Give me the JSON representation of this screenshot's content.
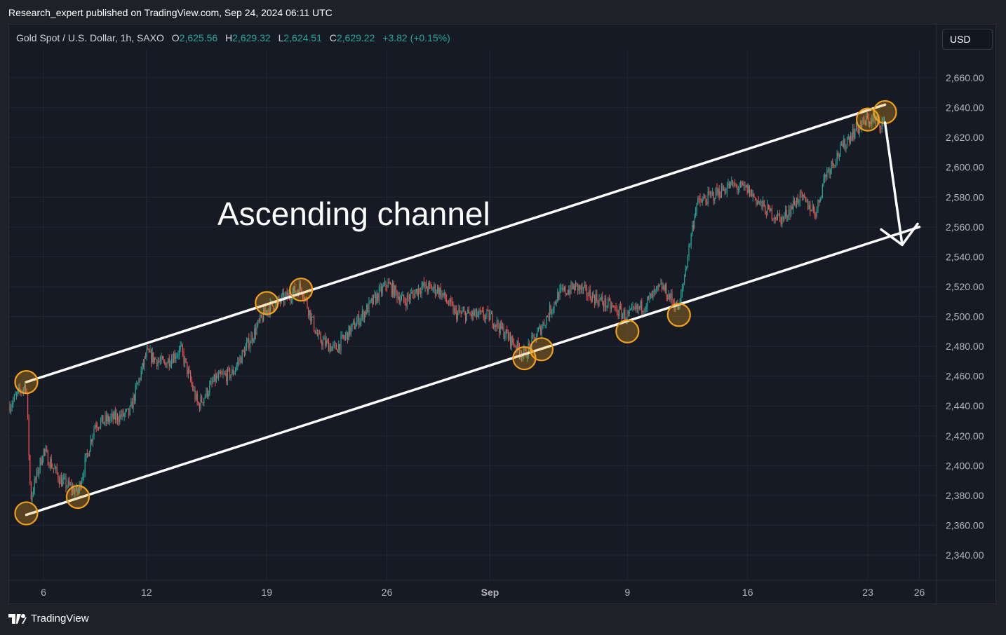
{
  "header": {
    "published": "Research_expert published on TradingView.com, Sep 24, 2024 06:11 UTC"
  },
  "legend": {
    "symbol": "Gold Spot / U.S. Dollar, 1h, SAXO",
    "o_label": "O",
    "o_value": "2,625.56",
    "h_label": "H",
    "h_value": "2,629.32",
    "l_label": "L",
    "l_value": "2,624.51",
    "c_label": "C",
    "c_value": "2,629.22",
    "change": "+3.82 (+0.15%)"
  },
  "currency": "USD",
  "footer": {
    "brand": "TradingView",
    "logo_icon": "tradingview-logo-icon"
  },
  "colors": {
    "up": "#26a69a",
    "down": "#ef5350",
    "marker": "#f0a01e",
    "channel": "#ffffff",
    "background": "#161a25"
  },
  "chart_data": {
    "type": "candlestick",
    "title": "",
    "annotation": "Ascending channel",
    "timeframe": "1h",
    "xlabel": "",
    "ylabel": "",
    "ylim": [
      2330,
      2680
    ],
    "x_range": [
      "2024-08-04",
      "2024-09-27"
    ],
    "grid": true,
    "y_ticks": [
      "2,340.00",
      "2,360.00",
      "2,380.00",
      "2,400.00",
      "2,420.00",
      "2,440.00",
      "2,460.00",
      "2,480.00",
      "2,500.00",
      "2,520.00",
      "2,540.00",
      "2,560.00",
      "2,580.00",
      "2,600.00",
      "2,620.00",
      "2,640.00",
      "2,660.00"
    ],
    "y_tick_values": [
      2340,
      2360,
      2380,
      2400,
      2420,
      2440,
      2460,
      2480,
      2500,
      2520,
      2540,
      2560,
      2580,
      2600,
      2620,
      2640,
      2660
    ],
    "x_ticks": [
      {
        "label": "6",
        "date": "2024-08-06"
      },
      {
        "label": "12",
        "date": "2024-08-12"
      },
      {
        "label": "19",
        "date": "2024-08-19"
      },
      {
        "label": "26",
        "date": "2024-08-26"
      },
      {
        "label": "Sep",
        "date": "2024-09-01"
      },
      {
        "label": "9",
        "date": "2024-09-09"
      },
      {
        "label": "16",
        "date": "2024-09-16"
      },
      {
        "label": "23",
        "date": "2024-09-23"
      },
      {
        "label": "26",
        "date": "2024-09-26"
      }
    ],
    "price_path": [
      {
        "date": "2024-08-04",
        "price": 2440
      },
      {
        "date": "2024-08-05",
        "price": 2455
      },
      {
        "date": "2024-08-05T06",
        "price": 2378
      },
      {
        "date": "2024-08-06",
        "price": 2410
      },
      {
        "date": "2024-08-07",
        "price": 2390
      },
      {
        "date": "2024-08-08",
        "price": 2382
      },
      {
        "date": "2024-08-09",
        "price": 2428
      },
      {
        "date": "2024-08-11",
        "price": 2435
      },
      {
        "date": "2024-08-12",
        "price": 2475
      },
      {
        "date": "2024-08-13",
        "price": 2468
      },
      {
        "date": "2024-08-14",
        "price": 2478
      },
      {
        "date": "2024-08-15",
        "price": 2440
      },
      {
        "date": "2024-08-16",
        "price": 2458
      },
      {
        "date": "2024-08-17",
        "price": 2462
      },
      {
        "date": "2024-08-19",
        "price": 2505
      },
      {
        "date": "2024-08-20",
        "price": 2512
      },
      {
        "date": "2024-08-21",
        "price": 2520
      },
      {
        "date": "2024-08-22",
        "price": 2485
      },
      {
        "date": "2024-08-23",
        "price": 2478
      },
      {
        "date": "2024-08-26",
        "price": 2522
      },
      {
        "date": "2024-08-27",
        "price": 2510
      },
      {
        "date": "2024-08-28",
        "price": 2520
      },
      {
        "date": "2024-08-29",
        "price": 2518
      },
      {
        "date": "2024-08-30",
        "price": 2502
      },
      {
        "date": "2024-09-01",
        "price": 2500
      },
      {
        "date": "2024-09-03",
        "price": 2474
      },
      {
        "date": "2024-09-04",
        "price": 2493
      },
      {
        "date": "2024-09-05",
        "price": 2515
      },
      {
        "date": "2024-09-06",
        "price": 2520
      },
      {
        "date": "2024-09-09",
        "price": 2500
      },
      {
        "date": "2024-09-10",
        "price": 2508
      },
      {
        "date": "2024-09-11",
        "price": 2520
      },
      {
        "date": "2024-09-12",
        "price": 2505
      },
      {
        "date": "2024-09-13",
        "price": 2575
      },
      {
        "date": "2024-09-15",
        "price": 2588
      },
      {
        "date": "2024-09-16",
        "price": 2585
      },
      {
        "date": "2024-09-17",
        "price": 2572
      },
      {
        "date": "2024-09-18",
        "price": 2565
      },
      {
        "date": "2024-09-19",
        "price": 2580
      },
      {
        "date": "2024-09-20",
        "price": 2570
      },
      {
        "date": "2024-09-20T12",
        "price": 2595
      },
      {
        "date": "2024-09-22",
        "price": 2622
      },
      {
        "date": "2024-09-23",
        "price": 2632
      },
      {
        "date": "2024-09-24",
        "price": 2629
      }
    ],
    "channel": {
      "upper": [
        {
          "date": "2024-08-05",
          "price": 2456
        },
        {
          "date": "2024-09-24",
          "price": 2642
        }
      ],
      "lower": [
        {
          "date": "2024-08-05",
          "price": 2367
        },
        {
          "date": "2024-09-26",
          "price": 2560
        }
      ]
    },
    "touch_points": [
      {
        "date": "2024-08-05",
        "price": 2456
      },
      {
        "date": "2024-08-05",
        "price": 2368
      },
      {
        "date": "2024-08-08",
        "price": 2379
      },
      {
        "date": "2024-08-19",
        "price": 2509
      },
      {
        "date": "2024-08-21",
        "price": 2518
      },
      {
        "date": "2024-09-03",
        "price": 2472
      },
      {
        "date": "2024-09-04",
        "price": 2478
      },
      {
        "date": "2024-09-09",
        "price": 2490
      },
      {
        "date": "2024-09-12",
        "price": 2501
      },
      {
        "date": "2024-09-23",
        "price": 2632
      },
      {
        "date": "2024-09-24",
        "price": 2637
      }
    ],
    "projection_arrow": {
      "from": {
        "date": "2024-09-24",
        "price": 2630
      },
      "to": {
        "date": "2024-09-25",
        "price": 2548
      }
    }
  }
}
